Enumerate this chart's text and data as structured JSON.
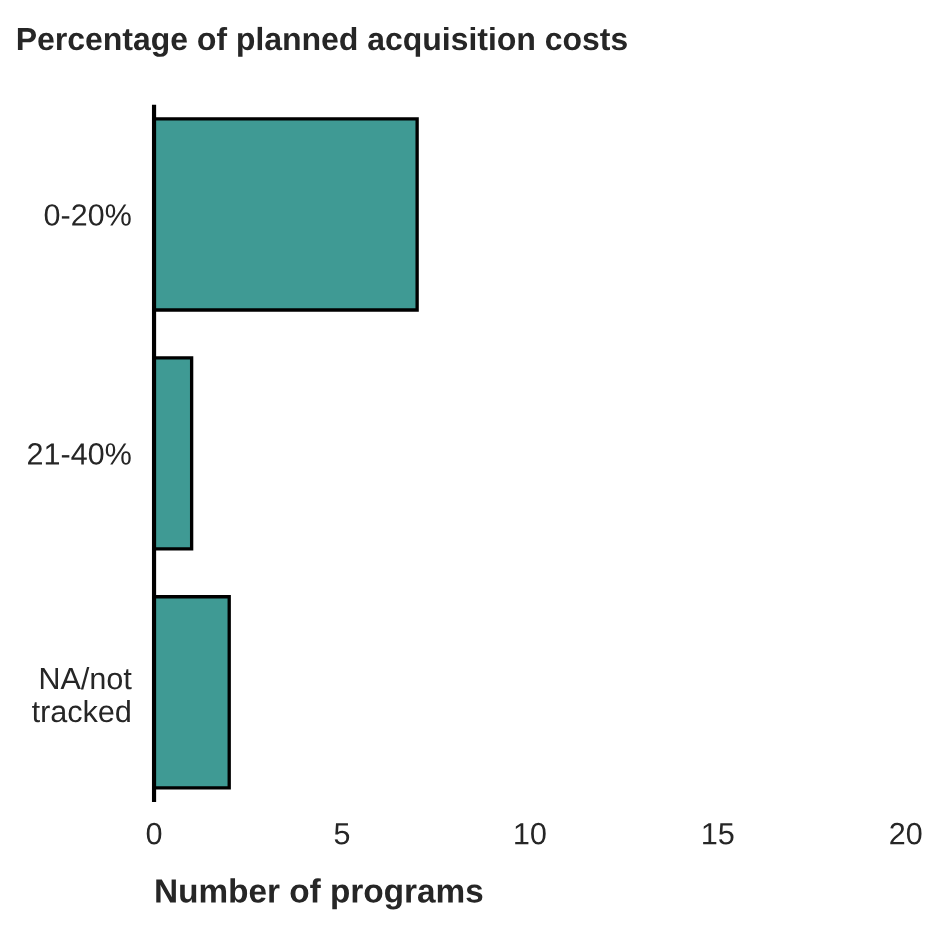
{
  "chart_data": {
    "type": "bar",
    "orientation": "horizontal",
    "title": "Percentage of planned acquisition costs",
    "xlabel": "Number of programs",
    "categories": [
      "0-20%",
      "21-40%",
      "NA/not\ntracked"
    ],
    "values": [
      7,
      1,
      2
    ],
    "color": "#3f9a94",
    "xlim": [
      0,
      20
    ],
    "xticks": [
      0,
      5,
      10,
      15,
      20
    ],
    "grid": false,
    "legend": false
  }
}
